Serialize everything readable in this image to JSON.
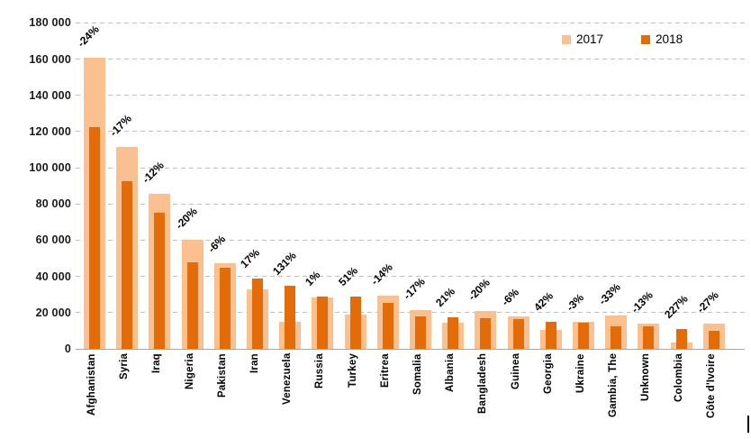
{
  "chart_data": {
    "type": "bar",
    "title": "",
    "xlabel": "",
    "ylabel": "",
    "categories": [
      "Afghanistan",
      "Syria",
      "Iraq",
      "Nigeria",
      "Pakistan",
      "Iran",
      "Venezuela",
      "Russia",
      "Turkey",
      "Eritrea",
      "Somalia",
      "Albania",
      "Bangladesh",
      "Guinea",
      "Georgia",
      "Ukraine",
      "Gambia, The",
      "Unknown",
      "Colombia",
      "Côte d'Ivoire"
    ],
    "series": [
      {
        "name": "2017",
        "color": "#FAC090",
        "values": [
          161000,
          111500,
          85500,
          60000,
          47500,
          33000,
          15000,
          28500,
          19000,
          29500,
          21500,
          14500,
          21000,
          17700,
          10500,
          15000,
          18300,
          14200,
          3400,
          14000
        ]
      },
      {
        "name": "2018",
        "color": "#E36C09",
        "values": [
          122400,
          92800,
          75400,
          48000,
          44700,
          38600,
          34650,
          28800,
          28700,
          25400,
          17850,
          17550,
          16800,
          16650,
          14900,
          14600,
          12300,
          12350,
          11100,
          10200
        ]
      }
    ],
    "pct_change_labels": [
      "-24%",
      "-17%",
      "-12%",
      "-20%",
      "-6%",
      "17%",
      "131%",
      "1%",
      "51%",
      "-14%",
      "-17%",
      "21%",
      "-20%",
      "-6%",
      "42%",
      "-3%",
      "-33%",
      "-13%",
      "227%",
      "-27%"
    ],
    "ylim": [
      0,
      180000
    ],
    "ytick_step": 20000,
    "ytick_labels": [
      "0",
      "20 000",
      "40 000",
      "60 000",
      "80 000",
      "100 000",
      "120 000",
      "140 000",
      "160 000",
      "180 000"
    ],
    "grid": "horizontal-dashed",
    "legend_position": "top-right",
    "bar_style": "overlapped (narrow 2018 bar centered on wide 2017 bar)"
  },
  "colors": {
    "gridline": "#BFBFBF",
    "axis_line": "#A6A6A6",
    "tick_text": "#1A1A1A",
    "label_text": "#000000"
  }
}
